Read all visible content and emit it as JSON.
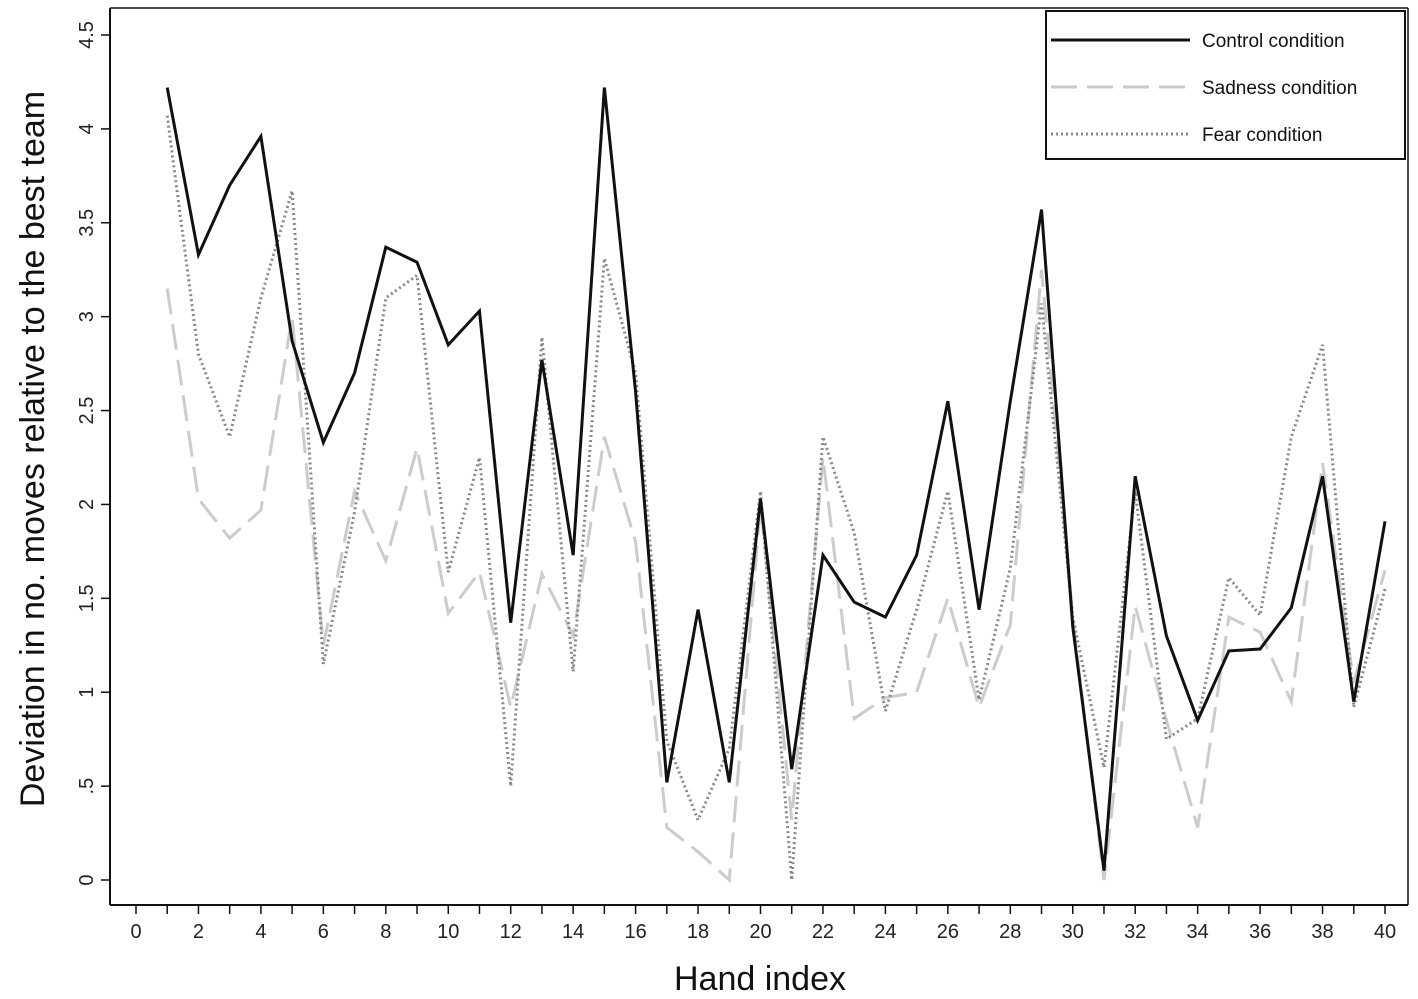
{
  "chart_data": {
    "type": "line",
    "xlabel": "Hand index",
    "ylabel": "Deviation in no. moves relative to the best team",
    "xlim": [
      0,
      40
    ],
    "ylim": [
      0,
      4.5
    ],
    "x_ticks": [
      "0",
      "2",
      "4",
      "6",
      "8",
      "10",
      "12",
      "14",
      "16",
      "18",
      "20",
      "22",
      "24",
      "26",
      "28",
      "30",
      "32",
      "34",
      "36",
      "38",
      "40"
    ],
    "y_ticks": [
      "0",
      ".5",
      "1",
      "1.5",
      "2",
      "2.5",
      "3",
      "3.5",
      "4",
      "4.5"
    ],
    "grid": false,
    "legend_position": "top-right",
    "x": [
      1,
      2,
      3,
      4,
      5,
      6,
      7,
      8,
      9,
      10,
      11,
      12,
      13,
      14,
      15,
      16,
      17,
      18,
      19,
      20,
      21,
      22,
      23,
      24,
      25,
      26,
      27,
      28,
      29,
      30,
      31,
      32,
      33,
      34,
      35,
      36,
      37,
      38,
      39,
      40
    ],
    "series": [
      {
        "name": "Control condition",
        "style": "solid",
        "color": "#111111",
        "values": [
          4.22,
          3.33,
          3.7,
          3.96,
          2.87,
          2.33,
          2.7,
          3.37,
          3.29,
          2.85,
          3.03,
          1.37,
          2.77,
          1.73,
          4.22,
          2.6,
          0.52,
          1.44,
          0.52,
          2.03,
          0.59,
          1.73,
          1.48,
          1.4,
          1.73,
          2.55,
          1.44,
          2.55,
          3.57,
          1.35,
          0.05,
          2.15,
          1.3,
          0.85,
          1.22,
          1.23,
          1.45,
          2.15,
          0.95,
          1.91
        ]
      },
      {
        "name": "Sadness condition",
        "style": "dashed",
        "color": "#cccccc",
        "values": [
          3.15,
          2.03,
          1.82,
          1.97,
          3.0,
          1.25,
          2.07,
          1.7,
          2.3,
          1.42,
          1.64,
          0.92,
          1.63,
          1.3,
          2.36,
          1.8,
          0.28,
          0.15,
          0.0,
          2.0,
          0.32,
          2.25,
          0.86,
          0.97,
          1.0,
          1.5,
          0.92,
          1.36,
          3.25,
          1.4,
          0.0,
          1.46,
          0.85,
          0.28,
          1.4,
          1.32,
          0.95,
          2.22,
          1.05,
          1.65
        ]
      },
      {
        "name": "Fear condition",
        "style": "dotted",
        "color": "#888888",
        "values": [
          4.07,
          2.8,
          2.36,
          3.1,
          3.67,
          1.15,
          1.96,
          3.1,
          3.22,
          1.64,
          2.25,
          0.5,
          2.89,
          1.11,
          3.31,
          2.7,
          0.74,
          0.32,
          0.7,
          2.07,
          0.0,
          2.36,
          1.85,
          0.9,
          1.44,
          2.07,
          0.96,
          1.66,
          3.07,
          1.4,
          0.6,
          2.07,
          0.75,
          0.86,
          1.61,
          1.41,
          2.36,
          2.85,
          0.92,
          1.55
        ]
      }
    ]
  }
}
